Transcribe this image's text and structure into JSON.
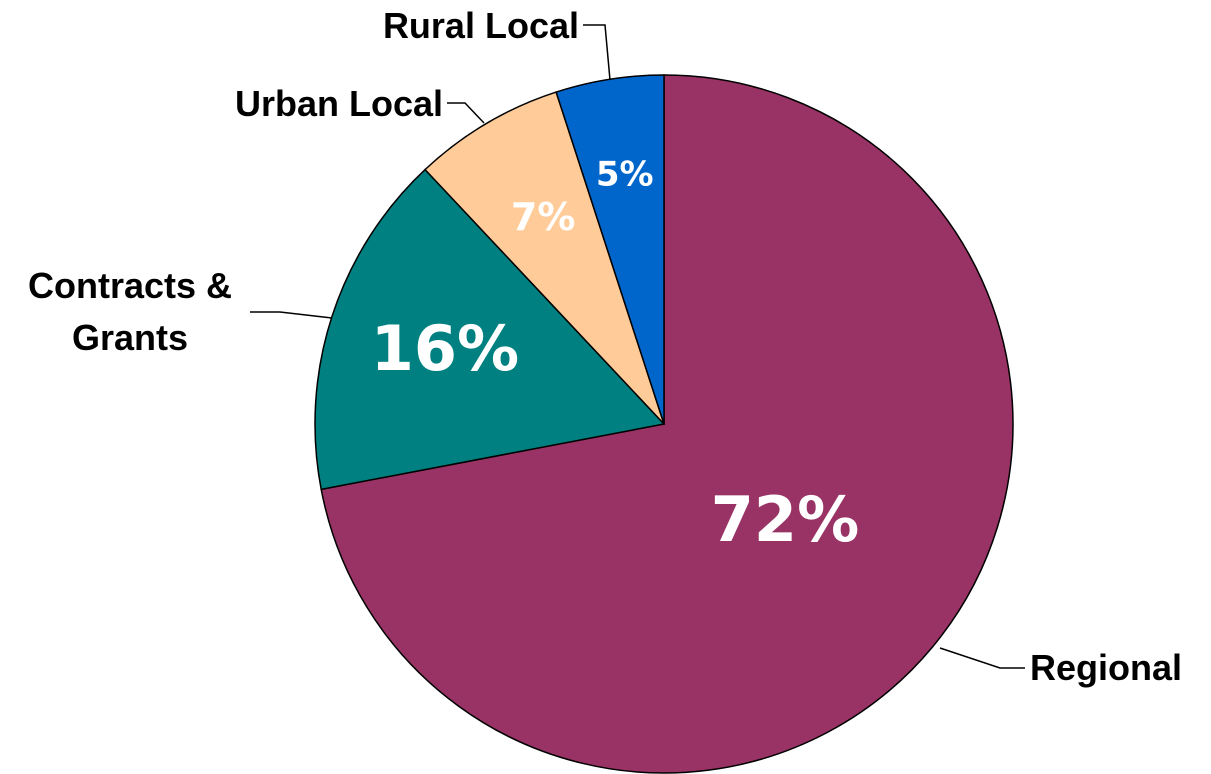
{
  "chart_data": {
    "type": "pie",
    "categories": [
      "Regional",
      "Contracts & Grants",
      "Urban Local",
      "Rural Local"
    ],
    "values": [
      72,
      16,
      7,
      5
    ],
    "value_labels": [
      "72%",
      "16%",
      "7%",
      "5%"
    ],
    "colors": [
      "#993366",
      "#008080",
      "#FFCC99",
      "#0066CC"
    ]
  }
}
